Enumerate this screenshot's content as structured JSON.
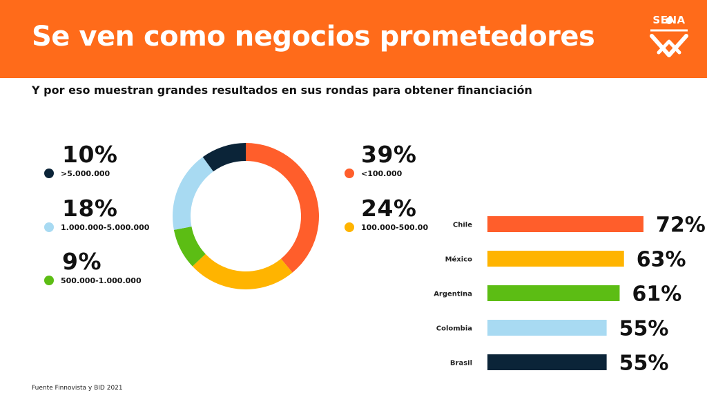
{
  "header": {
    "title": "Se ven como negocios prometedores",
    "logo_text": "SENA",
    "color": "#FF6B1A"
  },
  "subtitle": "Y por eso muestran grandes resultados en sus rondas para obtener financiación",
  "footnote": "Fuente Finnovista y BID 2021",
  "chart_data": [
    {
      "type": "pie",
      "title": "",
      "donut": true,
      "slices": [
        {
          "label": "<100.000",
          "value": 39,
          "display": "39%",
          "color": "#FF5E2B"
        },
        {
          "label": "100.000-500.00",
          "value": 24,
          "display": "24%",
          "color": "#FFB400"
        },
        {
          "label": "500.000-1.000.000",
          "value": 9,
          "display": "9%",
          "color": "#5CBD14"
        },
        {
          "label": "1.000.000-5.000.000",
          "value": 18,
          "display": "18%",
          "color": "#A8DAF2"
        },
        {
          "label": ">5.000.000",
          "value": 10,
          "display": "10%",
          "color": "#0B2438"
        }
      ]
    },
    {
      "type": "bar",
      "orientation": "horizontal",
      "title": "",
      "xlim": [
        0,
        72
      ],
      "grid": false,
      "categories": [
        "Chile",
        "México",
        "Argentina",
        "Colombia",
        "Brasil"
      ],
      "values": [
        72,
        63,
        61,
        55,
        55
      ],
      "labels": [
        "72%",
        "63%",
        "61%",
        "55%",
        "55%"
      ],
      "colors": [
        "#FF5E2B",
        "#FFB400",
        "#5CBD14",
        "#A8DAF2",
        "#0B2438"
      ]
    }
  ]
}
